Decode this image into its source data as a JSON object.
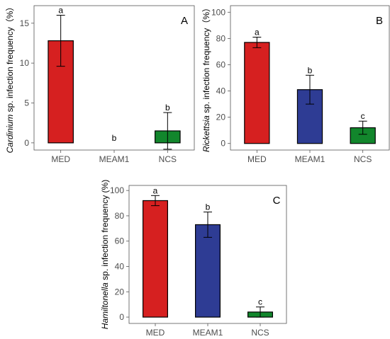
{
  "chart_data": [
    {
      "type": "bar",
      "panel_letter": "A",
      "ylabel_italic": "Cardinium",
      "ylabel_rest": " sp. infection frequency（%）",
      "categories": [
        "MED",
        "MEAM1",
        "NCS"
      ],
      "values": [
        12.8,
        0,
        1.5
      ],
      "errors": [
        3.2,
        0,
        2.3
      ],
      "letters": [
        "a",
        "b",
        "b"
      ],
      "colors": [
        "#d62020",
        "#2e3c94",
        "#12862c"
      ],
      "ylim": [
        -0.9,
        17.2
      ],
      "yticks": [
        0,
        5,
        10,
        15
      ]
    },
    {
      "type": "bar",
      "panel_letter": "B",
      "ylabel_italic": "Rickettsia",
      "ylabel_rest": " sp. infection frequency（%）",
      "categories": [
        "MED",
        "MEAM1",
        "NCS"
      ],
      "values": [
        77,
        41,
        12
      ],
      "errors": [
        4,
        11,
        5
      ],
      "letters": [
        "a",
        "b",
        "c"
      ],
      "colors": [
        "#d62020",
        "#2e3c94",
        "#12862c"
      ],
      "ylim": [
        -5,
        105
      ],
      "yticks": [
        0,
        20,
        40,
        60,
        80,
        100
      ]
    },
    {
      "type": "bar",
      "panel_letter": "C",
      "ylabel_italic": "Hamiltonella",
      "ylabel_rest": " sp. infection frequency (%)",
      "categories": [
        "MED",
        "MEAM1",
        "NCS"
      ],
      "values": [
        92,
        73,
        4
      ],
      "errors": [
        4,
        10,
        4
      ],
      "letters": [
        "a",
        "b",
        "c"
      ],
      "colors": [
        "#d62020",
        "#2e3c94",
        "#12862c"
      ],
      "ylim": [
        -5,
        104
      ],
      "yticks": [
        0,
        20,
        40,
        60,
        80,
        100
      ]
    }
  ]
}
